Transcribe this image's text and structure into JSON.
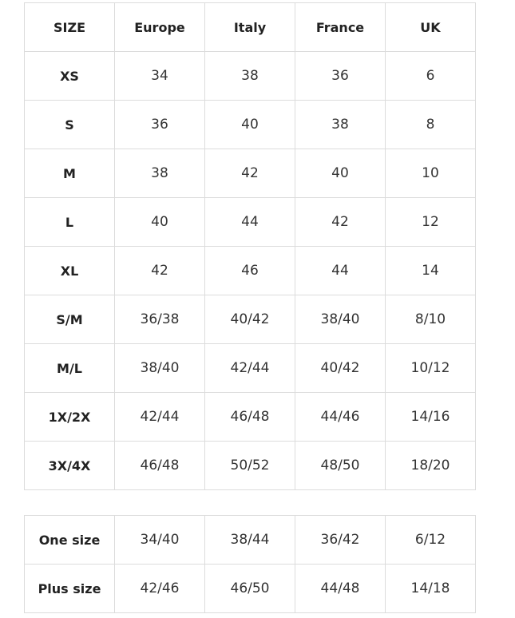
{
  "size_table": {
    "header": [
      "SIZE",
      "Europe",
      "Italy",
      "France",
      "UK"
    ],
    "rows": [
      [
        "XS",
        "34",
        "38",
        "36",
        "6"
      ],
      [
        "S",
        "36",
        "40",
        "38",
        "8"
      ],
      [
        "M",
        "38",
        "42",
        "40",
        "10"
      ],
      [
        "L",
        "40",
        "44",
        "42",
        "12"
      ],
      [
        "XL",
        "42",
        "46",
        "44",
        "14"
      ],
      [
        "S/M",
        "36/38",
        "40/42",
        "38/40",
        "8/10"
      ],
      [
        "M/L",
        "38/40",
        "42/44",
        "40/42",
        "10/12"
      ],
      [
        "1X/2X",
        "42/44",
        "46/48",
        "44/46",
        "14/16"
      ],
      [
        "3X/4X",
        "46/48",
        "50/52",
        "48/50",
        "18/20"
      ]
    ]
  },
  "one_size_table": {
    "rows": [
      [
        "One size",
        "34/40",
        "38/44",
        "36/42",
        "6/12"
      ],
      [
        "Plus size",
        "42/46",
        "46/50",
        "44/48",
        "14/18"
      ]
    ]
  }
}
